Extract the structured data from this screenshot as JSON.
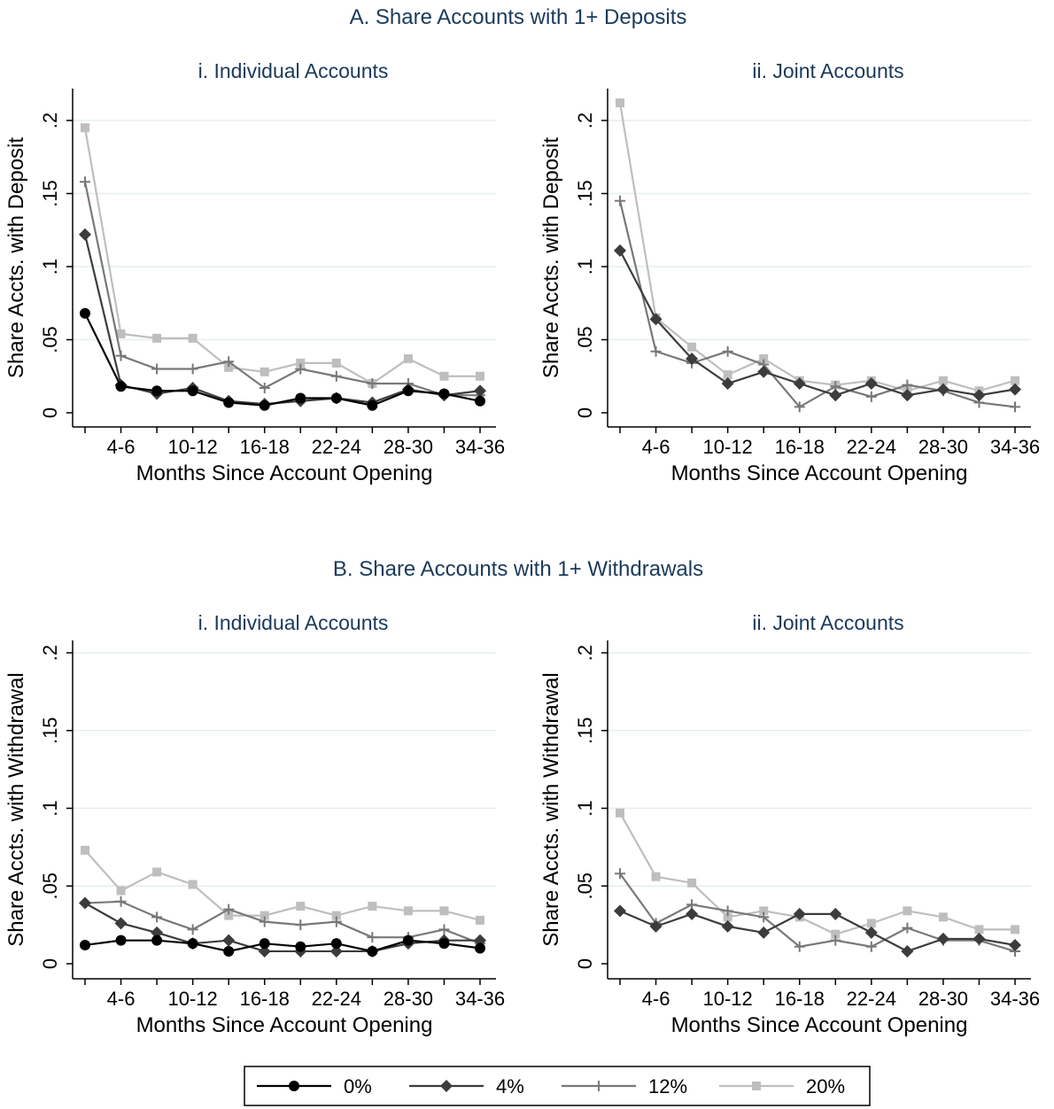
{
  "panel_titles": {
    "A": "A. Share Accounts with 1+ Deposits",
    "B": "B. Share Accounts with 1+ Withdrawals"
  },
  "legend": {
    "entries": [
      {
        "label": "0%",
        "color": "#000000",
        "marker": "circle"
      },
      {
        "label": "4%",
        "color": "#3c3c3c",
        "marker": "diamond"
      },
      {
        "label": "12%",
        "color": "#787878",
        "marker": "plus"
      },
      {
        "label": "20%",
        "color": "#bebebe",
        "marker": "square"
      }
    ]
  },
  "colors": {
    "grid": "#e4eef0",
    "title": "#1a3a5c"
  },
  "chart_data": [
    {
      "type": "line",
      "panel": "A",
      "title": "i. Individual Accounts",
      "xlabel": "Months Since Account Opening",
      "ylabel": "Share Accts. with Deposit",
      "x": [
        1,
        2,
        3,
        4,
        5,
        6,
        7,
        8,
        9,
        10,
        11,
        12
      ],
      "x_tick_labels": [
        "4-6",
        "10-12",
        "16-18",
        "22-24",
        "28-30",
        "34-36"
      ],
      "ylim": [
        0,
        0.2
      ],
      "y_ticks": [
        "0",
        ".05",
        ".1",
        ".15",
        ".2"
      ],
      "grid": true,
      "series": [
        {
          "name": "0%",
          "values": [
            0.068,
            0.018,
            0.015,
            0.015,
            0.007,
            0.005,
            0.01,
            0.01,
            0.005,
            0.015,
            0.013,
            0.008
          ]
        },
        {
          "name": "4%",
          "values": [
            0.122,
            0.019,
            0.013,
            0.017,
            0.008,
            0.006,
            0.008,
            0.01,
            0.007,
            0.016,
            0.012,
            0.015
          ]
        },
        {
          "name": "12%",
          "values": [
            0.158,
            0.039,
            0.03,
            0.03,
            0.035,
            0.017,
            0.03,
            0.025,
            0.02,
            0.02,
            0.012,
            0.012
          ]
        },
        {
          "name": "20%",
          "values": [
            0.195,
            0.054,
            0.051,
            0.051,
            0.031,
            0.028,
            0.034,
            0.034,
            0.02,
            0.037,
            0.025,
            0.025
          ]
        }
      ]
    },
    {
      "type": "line",
      "panel": "A",
      "title": "ii. Joint Accounts",
      "xlabel": "Months Since Account Opening",
      "ylabel": "Share Accts. with Deposit",
      "x": [
        1,
        2,
        3,
        4,
        5,
        6,
        7,
        8,
        9,
        10,
        11,
        12
      ],
      "x_tick_labels": [
        "4-6",
        "10-12",
        "16-18",
        "22-24",
        "28-30",
        "34-36"
      ],
      "ylim": [
        0,
        0.2
      ],
      "y_ticks": [
        "0",
        ".05",
        ".1",
        ".15",
        ".2"
      ],
      "grid": true,
      "series": [
        {
          "name": "4%",
          "values": [
            0.111,
            0.064,
            0.037,
            0.02,
            0.028,
            0.02,
            0.012,
            0.02,
            0.012,
            0.016,
            0.012,
            0.016
          ]
        },
        {
          "name": "12%",
          "values": [
            0.145,
            0.042,
            0.034,
            0.042,
            0.033,
            0.004,
            0.018,
            0.011,
            0.019,
            0.015,
            0.007,
            0.004
          ]
        },
        {
          "name": "20%",
          "values": [
            0.212,
            0.065,
            0.045,
            0.026,
            0.037,
            0.022,
            0.019,
            0.022,
            0.015,
            0.022,
            0.015,
            0.022
          ]
        }
      ]
    },
    {
      "type": "line",
      "panel": "B",
      "title": "i. Individual Accounts",
      "xlabel": "Months Since Account Opening",
      "ylabel": "Share Accts. with Withdrawal",
      "x": [
        1,
        2,
        3,
        4,
        5,
        6,
        7,
        8,
        9,
        10,
        11,
        12
      ],
      "x_tick_labels": [
        "4-6",
        "10-12",
        "16-18",
        "22-24",
        "28-30",
        "34-36"
      ],
      "ylim": [
        0,
        0.2
      ],
      "y_ticks": [
        "0",
        ".05",
        ".1",
        ".15",
        ".2"
      ],
      "grid": true,
      "series": [
        {
          "name": "0%",
          "values": [
            0.012,
            0.015,
            0.015,
            0.013,
            0.008,
            0.013,
            0.011,
            0.013,
            0.008,
            0.015,
            0.013,
            0.01
          ]
        },
        {
          "name": "4%",
          "values": [
            0.039,
            0.026,
            0.02,
            0.013,
            0.015,
            0.008,
            0.008,
            0.008,
            0.008,
            0.013,
            0.015,
            0.015
          ]
        },
        {
          "name": "12%",
          "values": [
            0.039,
            0.04,
            0.03,
            0.022,
            0.035,
            0.027,
            0.025,
            0.027,
            0.017,
            0.017,
            0.022,
            0.013
          ]
        },
        {
          "name": "20%",
          "values": [
            0.073,
            0.047,
            0.059,
            0.051,
            0.031,
            0.031,
            0.037,
            0.031,
            0.037,
            0.034,
            0.034,
            0.028
          ]
        }
      ]
    },
    {
      "type": "line",
      "panel": "B",
      "title": "ii. Joint Accounts",
      "xlabel": "Months Since Account Opening",
      "ylabel": "Share Accts. with Withdrawal",
      "x": [
        1,
        2,
        3,
        4,
        5,
        6,
        7,
        8,
        9,
        10,
        11,
        12
      ],
      "x_tick_labels": [
        "4-6",
        "10-12",
        "16-18",
        "22-24",
        "28-30",
        "34-36"
      ],
      "ylim": [
        0,
        0.2
      ],
      "y_ticks": [
        "0",
        ".05",
        ".1",
        ".15",
        ".2"
      ],
      "grid": true,
      "series": [
        {
          "name": "4%",
          "values": [
            0.034,
            0.024,
            0.032,
            0.024,
            0.02,
            0.032,
            0.032,
            0.02,
            0.008,
            0.016,
            0.016,
            0.012
          ]
        },
        {
          "name": "12%",
          "values": [
            0.058,
            0.026,
            0.038,
            0.034,
            0.03,
            0.011,
            0.015,
            0.011,
            0.023,
            0.015,
            0.015,
            0.008
          ]
        },
        {
          "name": "20%",
          "values": [
            0.097,
            0.056,
            0.052,
            0.03,
            0.034,
            0.03,
            0.019,
            0.026,
            0.034,
            0.03,
            0.022,
            0.022
          ]
        }
      ]
    }
  ]
}
